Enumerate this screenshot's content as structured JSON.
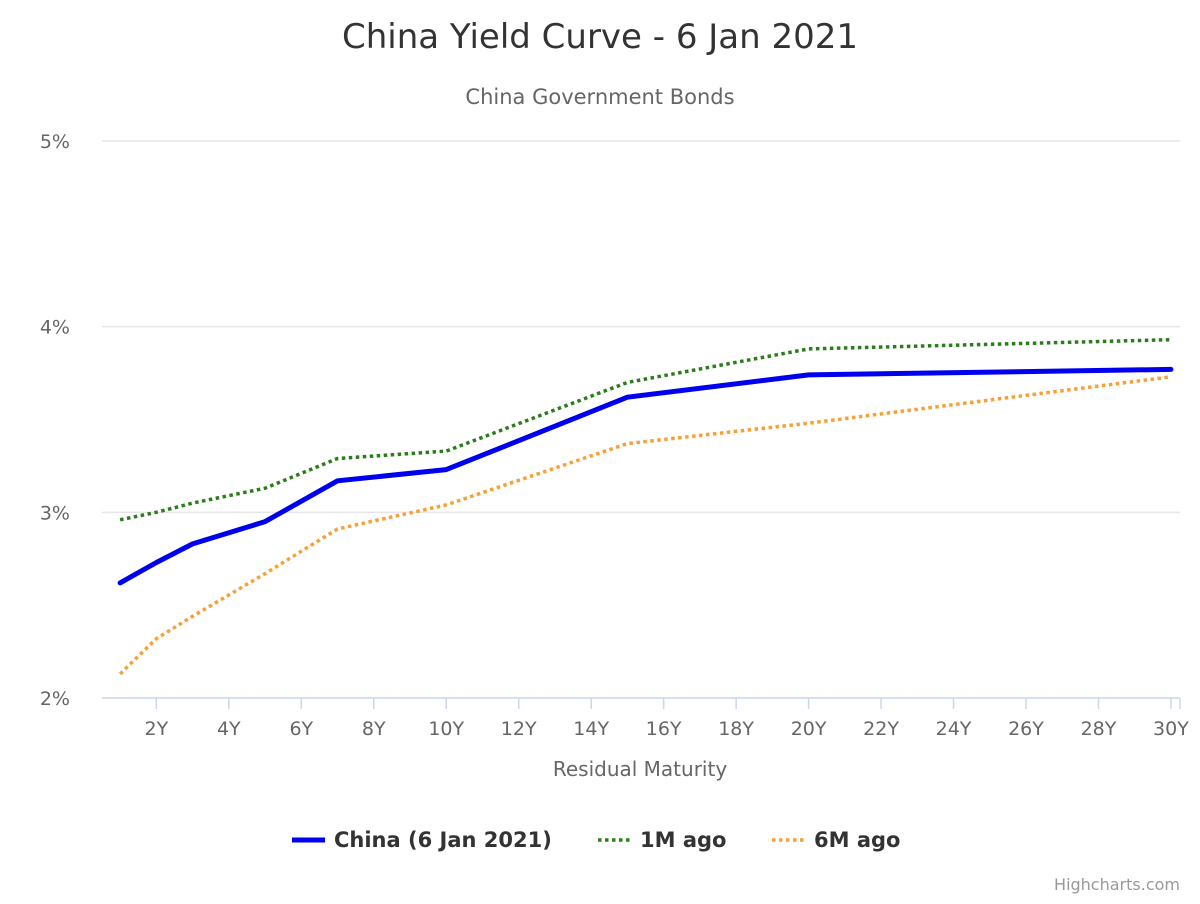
{
  "chart_data": {
    "type": "line",
    "title": "China Yield Curve - 6 Jan 2021",
    "subtitle": "China Government Bonds",
    "xlabel": "Residual Maturity",
    "ylabel": "",
    "x_unit_suffix": "Y",
    "y_unit_suffix": "%",
    "xlim": [
      0.5,
      30.25
    ],
    "ylim": [
      2,
      5
    ],
    "x_ticks": [
      2,
      4,
      6,
      8,
      10,
      12,
      14,
      16,
      18,
      20,
      22,
      24,
      26,
      28,
      30
    ],
    "x_tick_labels": [
      "2Y",
      "4Y",
      "6Y",
      "8Y",
      "10Y",
      "12Y",
      "14Y",
      "16Y",
      "18Y",
      "20Y",
      "22Y",
      "24Y",
      "26Y",
      "28Y",
      "30Y"
    ],
    "y_ticks": [
      2,
      3,
      4,
      5
    ],
    "y_tick_labels": [
      "2%",
      "3%",
      "4%",
      "5%"
    ],
    "grid": true,
    "legend_position": "bottom-center",
    "series": [
      {
        "name": "China (6 Jan 2021)",
        "color": "#0000ee",
        "style": "solid",
        "x": [
          1,
          2,
          3,
          5,
          7,
          10,
          15,
          20,
          30
        ],
        "values": [
          2.62,
          2.73,
          2.83,
          2.95,
          3.17,
          3.23,
          3.62,
          3.74,
          3.77
        ]
      },
      {
        "name": "1M ago",
        "color": "#2a7d1a",
        "style": "dotted",
        "x": [
          1,
          2,
          3,
          5,
          7,
          10,
          15,
          20,
          30
        ],
        "values": [
          2.96,
          3.0,
          3.05,
          3.13,
          3.29,
          3.33,
          3.7,
          3.88,
          3.93
        ]
      },
      {
        "name": "6M ago",
        "color": "#f7a035",
        "style": "dotted",
        "x": [
          1,
          2,
          3,
          5,
          7,
          10,
          15,
          20,
          30
        ],
        "values": [
          2.13,
          2.32,
          2.44,
          2.67,
          2.91,
          3.04,
          3.37,
          3.48,
          3.73
        ]
      }
    ]
  },
  "credits": "Highcharts.com"
}
